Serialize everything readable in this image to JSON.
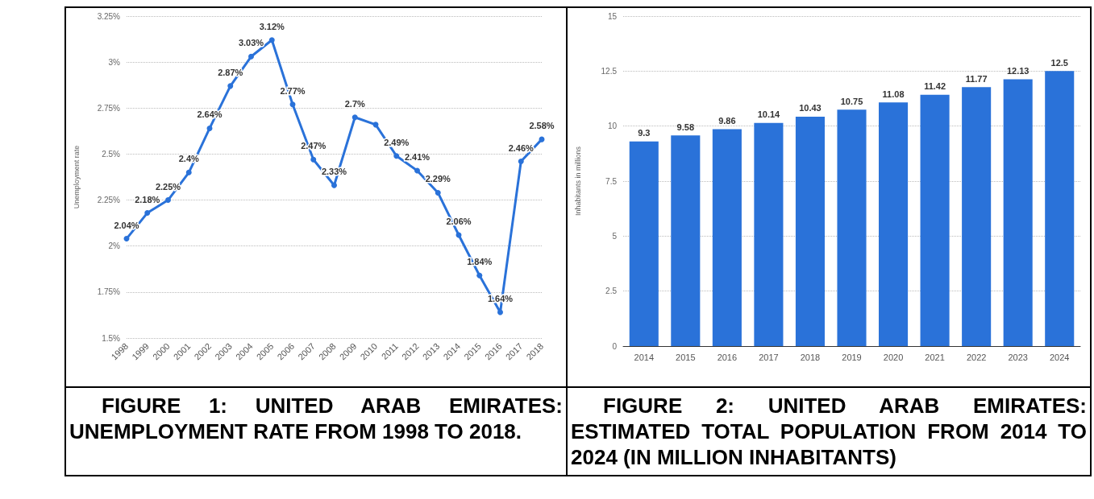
{
  "chart_data": [
    {
      "type": "line",
      "title": "FIGURE 1: UNITED ARAB EMIRATES: UNEMPLOYMENT RATE FROM 1998 TO 2018.",
      "ylabel": "Unemployment rate",
      "categories": [
        "1998",
        "1999",
        "2000",
        "2001",
        "2002",
        "2003",
        "2004",
        "2005",
        "2006",
        "2007",
        "2008",
        "2009",
        "2010",
        "2011",
        "2012",
        "2013",
        "2014",
        "2015",
        "2016",
        "2017",
        "2018"
      ],
      "values": [
        2.04,
        2.18,
        2.25,
        2.4,
        2.64,
        2.87,
        3.03,
        3.12,
        2.77,
        2.47,
        2.33,
        2.7,
        2.66,
        2.49,
        2.41,
        2.29,
        2.06,
        1.84,
        1.64,
        2.46,
        2.58
      ],
      "value_labels": [
        "2.04%",
        "2.18%",
        "2.25%",
        "2.4%",
        "2.64%",
        "2.87%",
        "3.03%",
        "3.12%",
        "2.77%",
        "2.47%",
        "2.33%",
        "2.7%",
        null,
        "2.49%",
        "2.41%",
        "2.29%",
        "2.06%",
        "1.84%",
        "1.64%",
        "2.46%",
        "2.58%"
      ],
      "color": "#2a72d9",
      "marker": "circle",
      "line_style": "solid",
      "ylim": [
        1.5,
        3.25
      ],
      "yticks": [
        {
          "value": 1.5,
          "label": "1.5%"
        },
        {
          "value": 1.75,
          "label": "1.75%"
        },
        {
          "value": 2,
          "label": "2%"
        },
        {
          "value": 2.25,
          "label": "2.25%"
        },
        {
          "value": 2.5,
          "label": "2.5%"
        },
        {
          "value": 2.75,
          "label": "2.75%"
        },
        {
          "value": 3,
          "label": "3%"
        },
        {
          "value": 3.25,
          "label": "3.25%"
        }
      ],
      "grid": "y"
    },
    {
      "type": "bar",
      "title": "FIGURE 2: UNITED ARAB EMIRATES: ESTIMATED TOTAL POPULATION FROM 2014 TO 2024 (IN MILLION INHABITANTS)",
      "ylabel": "Inhabitants in millions",
      "categories": [
        "2014",
        "2015",
        "2016",
        "2017",
        "2018",
        "2019",
        "2020",
        "2021",
        "2022",
        "2023",
        "2024"
      ],
      "values": [
        9.3,
        9.58,
        9.86,
        10.14,
        10.43,
        10.75,
        11.08,
        11.42,
        11.77,
        12.13,
        12.5
      ],
      "color": "#2a72d9",
      "data_labels": true,
      "ylim": [
        0,
        15
      ],
      "yticks": [
        0,
        2.5,
        5,
        7.5,
        10,
        12.5,
        15
      ],
      "grid": "y"
    }
  ]
}
